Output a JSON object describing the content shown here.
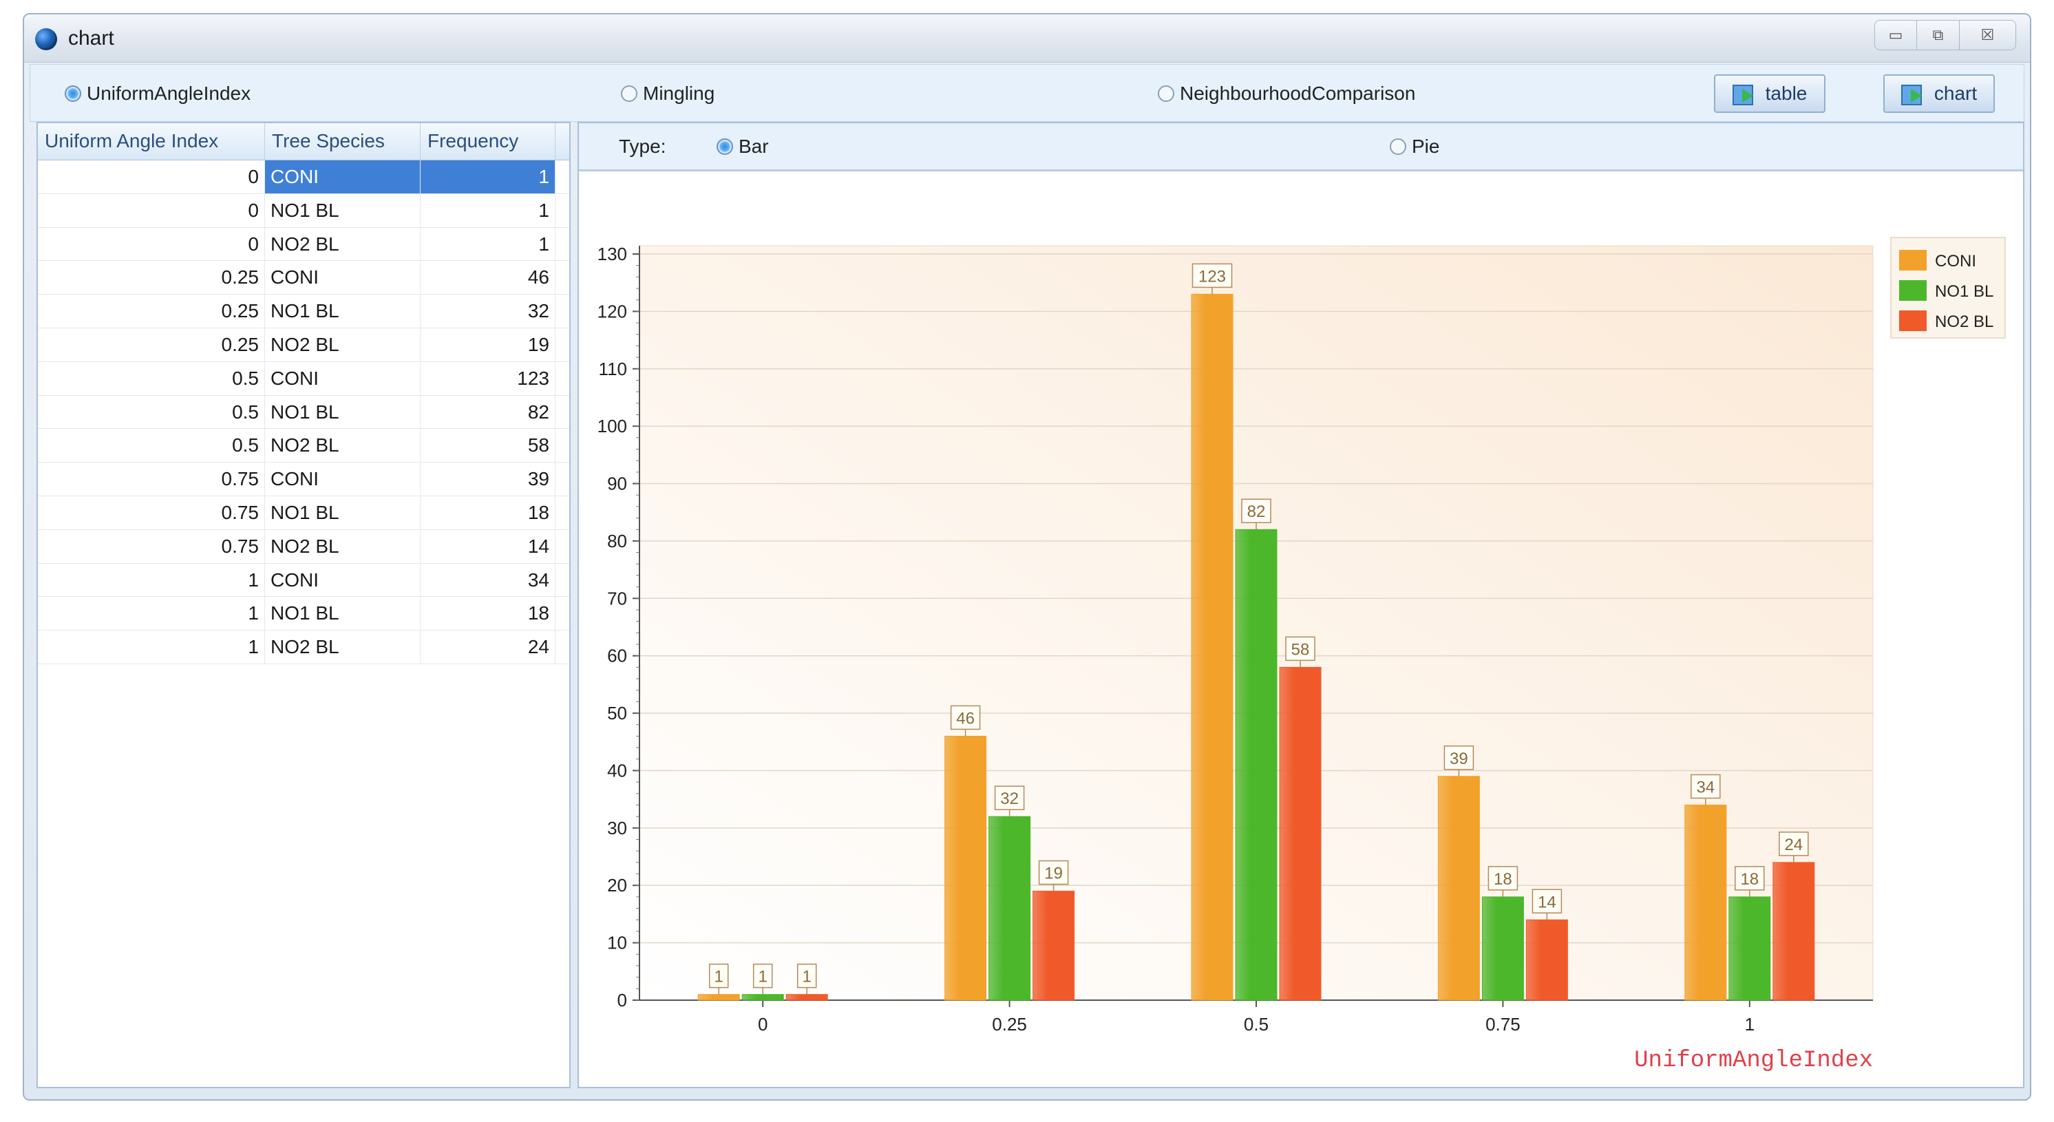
{
  "window": {
    "title": "chart",
    "controls": {
      "minimize": "▭",
      "restore": "⧉",
      "close": "☒"
    }
  },
  "toolbar": {
    "modes": [
      {
        "label": "UniformAngleIndex",
        "selected": true
      },
      {
        "label": "Mingling",
        "selected": false
      },
      {
        "label": "NeighbourhoodComparison",
        "selected": false
      }
    ],
    "table_button": "table",
    "chart_button": "chart"
  },
  "table": {
    "headers": [
      "Uniform Angle Index",
      "Tree Species",
      "Frequency"
    ],
    "rows": [
      [
        "0",
        "CONI",
        "1"
      ],
      [
        "0",
        "NO1 BL",
        "1"
      ],
      [
        "0",
        "NO2 BL",
        "1"
      ],
      [
        "0.25",
        "CONI",
        "46"
      ],
      [
        "0.25",
        "NO1 BL",
        "32"
      ],
      [
        "0.25",
        "NO2 BL",
        "19"
      ],
      [
        "0.5",
        "CONI",
        "123"
      ],
      [
        "0.5",
        "NO1 BL",
        "82"
      ],
      [
        "0.5",
        "NO2 BL",
        "58"
      ],
      [
        "0.75",
        "CONI",
        "39"
      ],
      [
        "0.75",
        "NO1 BL",
        "18"
      ],
      [
        "0.75",
        "NO2 BL",
        "14"
      ],
      [
        "1",
        "CONI",
        "34"
      ],
      [
        "1",
        "NO1 BL",
        "18"
      ],
      [
        "1",
        "NO2 BL",
        "24"
      ]
    ],
    "selected_row": 0
  },
  "chart_type": {
    "label": "Type:",
    "options": [
      {
        "label": "Bar",
        "selected": true
      },
      {
        "label": "Pie",
        "selected": false
      }
    ]
  },
  "colors": {
    "coni": "#f2a12a",
    "no1": "#4cb72a",
    "no2": "#f05a2a",
    "xlabel": "#e0404a"
  },
  "chart_data": {
    "type": "bar",
    "categories": [
      "0",
      "0.25",
      "0.5",
      "0.75",
      "1"
    ],
    "series": [
      {
        "name": "CONI",
        "values": [
          1,
          46,
          123,
          39,
          34
        ]
      },
      {
        "name": "NO1 BL",
        "values": [
          1,
          32,
          82,
          18,
          18
        ]
      },
      {
        "name": "NO2 BL",
        "values": [
          1,
          19,
          58,
          14,
          24
        ]
      }
    ],
    "xlabel": "UniformAngleIndex",
    "ylabel": "",
    "ylim": [
      0,
      130
    ],
    "yticks": [
      0,
      10,
      20,
      30,
      40,
      50,
      60,
      70,
      80,
      90,
      100,
      110,
      120,
      130
    ],
    "legend": "top-right",
    "grid": true
  }
}
